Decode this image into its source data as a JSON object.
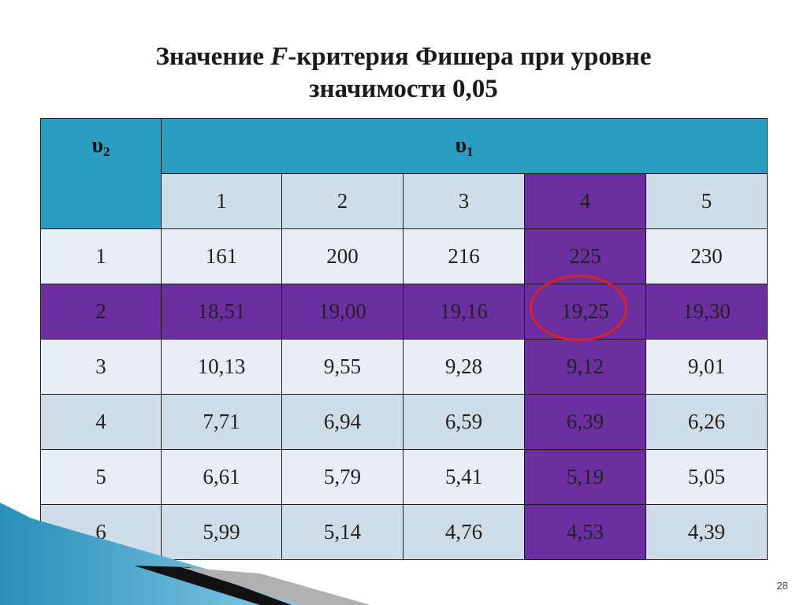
{
  "title": {
    "line1_pre": "Значение ",
    "line1_italic": "F",
    "line1_post": "-критерия Фишера при уровне",
    "line2": "значимости 0,05"
  },
  "table": {
    "row_header_symbol": "υ",
    "row_header_sub": "2",
    "col_header_symbol": "υ",
    "col_header_sub": "1",
    "columns": [
      "1",
      "2",
      "3",
      "4",
      "5"
    ],
    "rows": [
      {
        "label": "1",
        "values": [
          "161",
          "200",
          "216",
          "225",
          "230"
        ]
      },
      {
        "label": "2",
        "values": [
          "18,51",
          "19,00",
          "19,16",
          "19,25",
          "19,30"
        ]
      },
      {
        "label": "3",
        "values": [
          "10,13",
          "9,55",
          "9,28",
          "9,12",
          "9,01"
        ]
      },
      {
        "label": "4",
        "values": [
          "7,71",
          "6,94",
          "6,59",
          "6,39",
          "6,26"
        ]
      },
      {
        "label": "5",
        "values": [
          "6,61",
          "5,79",
          "5,41",
          "5,19",
          "5,05"
        ]
      },
      {
        "label": "6",
        "values": [
          "5,99",
          "5,14",
          "4,76",
          "4,53",
          "4,39"
        ]
      }
    ]
  },
  "page_number": "28",
  "colors": {
    "header_teal": "#2a9ec1",
    "highlight_purple": "#6b2f9f",
    "circle_red": "#e02020"
  }
}
